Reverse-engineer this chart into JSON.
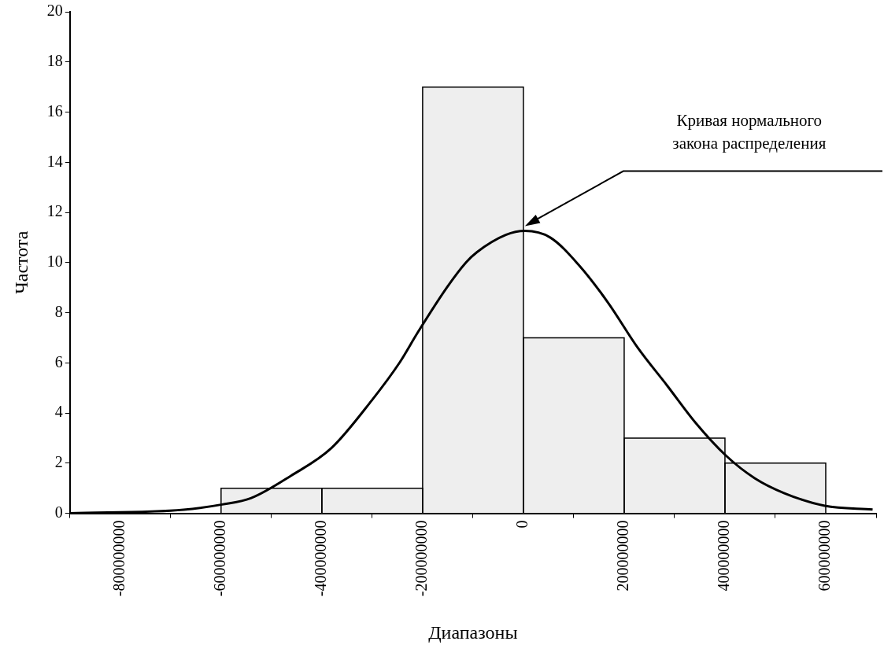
{
  "chart_data": {
    "type": "histogram",
    "xlabel": "Диапазоны",
    "ylabel": "Частота",
    "bins": [
      -600000000,
      -400000000,
      -200000000,
      0,
      200000000,
      400000000,
      600000000
    ],
    "values": [
      1,
      1,
      17,
      7,
      3,
      2
    ],
    "color": "#eeeeee",
    "series": [
      {
        "type": "line",
        "color": "#000000",
        "marker": "none",
        "line_style": "solid",
        "x": [
          -900000000,
          -674000000,
          -598000000,
          -541000000,
          -461000000,
          -381000000,
          -301000000,
          -246000000,
          -210000000,
          -152000000,
          -114000000,
          -93000000,
          -35000000,
          3000000,
          53000000,
          110000000,
          168000000,
          227000000,
          285000000,
          342000000,
          402000000,
          459000000,
          518000000,
          598000000,
          693000000
        ],
        "values": [
          0,
          0.14,
          0.35,
          0.6,
          1.5,
          2.6,
          4.5,
          6.0,
          7.2,
          9.0,
          10.0,
          10.4,
          11.1,
          11.26,
          11.0,
          9.9,
          8.4,
          6.6,
          5.1,
          3.6,
          2.3,
          1.4,
          0.8,
          0.3,
          0.15
        ]
      }
    ],
    "xlim": [
      -900000000,
      700000000
    ],
    "xticks": [
      -800000000,
      -600000000,
      -400000000,
      -200000000,
      0,
      200000000,
      400000000,
      600000000
    ],
    "ylim": [
      0,
      20
    ],
    "yticks": [
      0,
      2,
      4,
      6,
      8,
      10,
      12,
      14,
      16,
      18,
      20
    ],
    "grid": false,
    "legend": false,
    "annotations": [
      "Кривая нормального\nзакона распределения"
    ]
  }
}
